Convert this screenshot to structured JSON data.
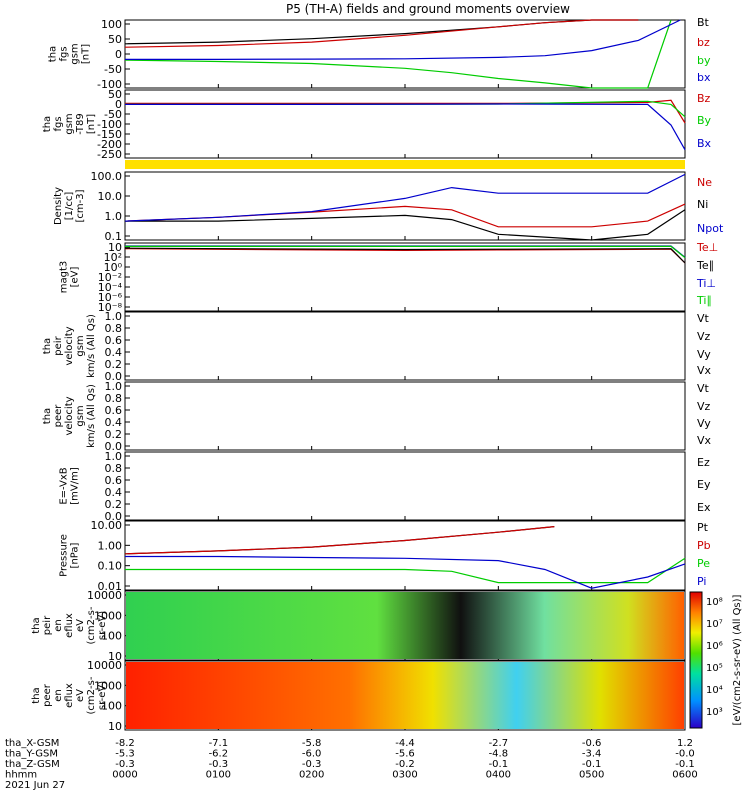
{
  "title": "P5 (TH-A) fields and ground moments overview",
  "chart_data": [
    {
      "type": "line",
      "panel": "fgs_gsm",
      "ylabel": [
        "tha",
        "fgs",
        "gsm",
        "[nT]"
      ],
      "yticks": [
        "100",
        "50",
        "0",
        "-50",
        "-100"
      ],
      "ylim": [
        -100,
        100
      ],
      "series": [
        {
          "name": "Bt",
          "color": "#000000",
          "x": [
            0,
            1,
            2,
            3,
            4,
            4.5,
            5,
            5.5
          ],
          "values": [
            30,
            35,
            45,
            60,
            80,
            92,
            105,
            120
          ]
        },
        {
          "name": "bz",
          "color": "#cc0000",
          "x": [
            0,
            1,
            2,
            3,
            4,
            4.5,
            5,
            5.5
          ],
          "values": [
            20,
            25,
            35,
            55,
            80,
            92,
            105,
            120
          ]
        },
        {
          "name": "by",
          "color": "#00cc00",
          "x": [
            0,
            1,
            2,
            3,
            3.5,
            4,
            4.5,
            5,
            5.6,
            5.85
          ],
          "values": [
            -18,
            -22,
            -28,
            -42,
            -55,
            -72,
            -85,
            -110,
            -120,
            100
          ]
        },
        {
          "name": "bx",
          "color": "#0000cc",
          "x": [
            0,
            1,
            2,
            3,
            4,
            4.5,
            5,
            5.5,
            5.95
          ],
          "values": [
            -16,
            -16,
            -15,
            -14,
            -10,
            -5,
            10,
            40,
            100
          ]
        }
      ]
    },
    {
      "type": "line",
      "panel": "fgs_gsm_dip",
      "ylabel": [
        "tha",
        "fgs",
        "gsm",
        "-T89",
        "[nT]"
      ],
      "yticks": [
        "50",
        "0",
        "-50",
        "-100",
        "-150",
        "-200",
        "-250"
      ],
      "ylim": [
        -260,
        70
      ],
      "series": [
        {
          "name": "Bz",
          "color": "#cc0000",
          "x": [
            0,
            2,
            4,
            5.6,
            5.85,
            6
          ],
          "values": [
            5,
            5,
            5,
            10,
            20,
            -90
          ]
        },
        {
          "name": "By",
          "color": "#00cc00",
          "x": [
            0,
            2,
            4,
            5.6,
            5.85,
            6
          ],
          "values": [
            0,
            0,
            2,
            15,
            0,
            -60
          ]
        },
        {
          "name": "Bx",
          "color": "#0000cc",
          "x": [
            0,
            2,
            4,
            5.6,
            5.85,
            6
          ],
          "values": [
            0,
            0,
            2,
            0,
            -100,
            -220
          ]
        }
      ]
    },
    {
      "type": "line",
      "panel": "density",
      "ylabel": [
        "Density",
        "[1/cc]",
        "[cm-3]"
      ],
      "log": true,
      "yticks": [
        "100.0",
        "10.0",
        "1.0",
        "0.1"
      ],
      "ylim": [
        0.05,
        200
      ],
      "series": [
        {
          "name": "Ne",
          "color": "#cc0000",
          "x": [
            0,
            1,
            2,
            3,
            3.5,
            4,
            5,
            5.6,
            6
          ],
          "values": [
            0.5,
            0.8,
            1.5,
            3,
            2,
            0.25,
            0.25,
            0.5,
            4
          ]
        },
        {
          "name": "Ni",
          "color": "#000000",
          "x": [
            0,
            1,
            2,
            3,
            3.5,
            4,
            5,
            5.6,
            6
          ],
          "values": [
            0.5,
            0.5,
            0.7,
            1.0,
            0.6,
            0.1,
            0.05,
            0.1,
            2
          ]
        },
        {
          "name": "Npot",
          "color": "#0000cc",
          "x": [
            0,
            1,
            2,
            3,
            3.5,
            4,
            5,
            5.6,
            6
          ],
          "values": [
            0.5,
            0.8,
            1.6,
            8,
            30,
            15,
            15,
            15,
            150
          ]
        }
      ]
    },
    {
      "type": "line",
      "panel": "temperature",
      "ylabel": [
        "magt3",
        "[eV]"
      ],
      "log": true,
      "yticks": [
        "10",
        "10²",
        "10⁰",
        "10⁻²",
        "10⁻⁴",
        "10⁻⁶",
        "10⁻⁸"
      ],
      "ylim": [
        1e-08,
        10000.0
      ],
      "series": [
        {
          "name": "Te⊥",
          "color": "#cc0000",
          "x": [
            0,
            3,
            4,
            5.85,
            6
          ],
          "values": [
            1000,
            500,
            600,
            800,
            3
          ]
        },
        {
          "name": "Te∥",
          "color": "#000000",
          "x": [
            0,
            3,
            4,
            5.85,
            6
          ],
          "values": [
            1200,
            700,
            800,
            1000,
            3
          ]
        },
        {
          "name": "Ti⊥",
          "color": "#0000cc",
          "x": [
            0,
            3,
            4,
            5.85,
            6
          ],
          "values": [
            3000,
            3000,
            3000,
            3000,
            30
          ]
        },
        {
          "name": "Ti∥",
          "color": "#00cc00",
          "x": [
            0,
            3,
            4,
            5.85,
            6
          ],
          "values": [
            2500,
            2500,
            2500,
            2500,
            25
          ]
        }
      ]
    },
    {
      "type": "line",
      "panel": "peir_velocity",
      "ylabel": [
        "tha",
        "peir",
        "velocity",
        "gsm",
        "km/s (All Qs)"
      ],
      "yticks": [
        "1.0",
        "0.8",
        "0.6",
        "0.4",
        "0.2",
        "0.0"
      ],
      "ylim": [
        0,
        1
      ],
      "series": [
        {
          "name": "Vt"
        },
        {
          "name": "Vz"
        },
        {
          "name": "Vy"
        },
        {
          "name": "Vx"
        }
      ]
    },
    {
      "type": "line",
      "panel": "peer_velocity",
      "ylabel": [
        "tha",
        "peer",
        "velocity",
        "gsm",
        "km/s (All Qs)"
      ],
      "yticks": [
        "1.0",
        "0.8",
        "0.6",
        "0.4",
        "0.2",
        "0.0"
      ],
      "ylim": [
        0,
        1
      ],
      "series": [
        {
          "name": "Vt"
        },
        {
          "name": "Vz"
        },
        {
          "name": "Vy"
        },
        {
          "name": "Vx"
        }
      ]
    },
    {
      "type": "line",
      "panel": "efield",
      "ylabel": [
        "E=-VxB",
        "[mV/m]"
      ],
      "yticks": [
        "1.0",
        "0.8",
        "0.6",
        "0.4",
        "0.2",
        "0.0"
      ],
      "ylim": [
        0,
        1
      ],
      "series": [
        {
          "name": "Ez"
        },
        {
          "name": "Ey"
        },
        {
          "name": "Ex"
        }
      ]
    },
    {
      "type": "line",
      "panel": "pressure",
      "ylabel": [
        "Pressure",
        "[nPa]"
      ],
      "log": true,
      "yticks": [
        "10.00",
        "1.00",
        "0.10",
        "0.01"
      ],
      "ylim": [
        0.004,
        20
      ],
      "series": [
        {
          "name": "Pt",
          "color": "#000000",
          "x": [
            0,
            1,
            2,
            3,
            4,
            4.6
          ],
          "values": [
            0.35,
            0.5,
            0.8,
            1.8,
            5,
            10
          ]
        },
        {
          "name": "Pb",
          "color": "#cc0000",
          "x": [
            0,
            1,
            2,
            3,
            4,
            4.6
          ],
          "values": [
            0.35,
            0.5,
            0.8,
            1.8,
            5,
            10
          ]
        },
        {
          "name": "Pe",
          "color": "#00cc00",
          "x": [
            0,
            1,
            2,
            3,
            3.5,
            4,
            5,
            5.6,
            6
          ],
          "values": [
            0.05,
            0.05,
            0.05,
            0.05,
            0.04,
            0.01,
            0.01,
            0.01,
            0.2
          ]
        },
        {
          "name": "Pi",
          "color": "#0000cc",
          "x": [
            0,
            1,
            2,
            3,
            4,
            4.5,
            5,
            5.6,
            6
          ],
          "values": [
            0.25,
            0.25,
            0.22,
            0.2,
            0.15,
            0.05,
            0.005,
            0.02,
            0.1
          ]
        }
      ]
    },
    {
      "type": "heatmap",
      "panel": "peir_eflux",
      "ylabel": [
        "tha",
        "peir",
        "en",
        "eflux",
        "eV",
        "(cm2-s-",
        "sr-eV)"
      ],
      "yticks": [
        "10000",
        "1000",
        "100",
        "10"
      ],
      "ylim": [
        5,
        20000
      ]
    },
    {
      "type": "heatmap",
      "panel": "peer_eflux",
      "ylabel": [
        "tha",
        "peer",
        "en",
        "eflux",
        "eV",
        "(cm2-s-",
        "sr-eV)"
      ],
      "yticks": [
        "10000",
        "1000",
        "100",
        "10"
      ],
      "ylim": [
        5,
        20000
      ]
    }
  ],
  "colorbar": {
    "label": "[eV/(cm2-s-sr-eV) (All Qs)]",
    "ticks": [
      "10⁸",
      "10⁷",
      "10⁶",
      "10⁵",
      "10⁴",
      "10³"
    ]
  },
  "axis": {
    "row_labels": [
      "tha_X-GSM",
      "tha_Y-GSM",
      "tha_Z-GSM",
      "hhmm",
      "2021 Jun 27"
    ],
    "columns": [
      [
        "-8.2",
        "-5.3",
        "-0.3",
        "0000"
      ],
      [
        "-7.1",
        "-6.2",
        "-0.3",
        "0100"
      ],
      [
        "-5.8",
        "-6.0",
        "-0.3",
        "0200"
      ],
      [
        "-4.4",
        "-5.6",
        "-0.2",
        "0300"
      ],
      [
        "-2.7",
        "-4.8",
        "-0.1",
        "0400"
      ],
      [
        "-0.6",
        "-3.4",
        "-0.1",
        "0500"
      ],
      [
        "1.2",
        "-0.0",
        "-0.1",
        "0600"
      ]
    ]
  }
}
